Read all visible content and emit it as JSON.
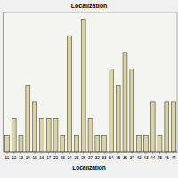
{
  "chart_data": {
    "type": "bar",
    "title": "Localization",
    "x_label": "Localization",
    "categories": [
      "11",
      "12",
      "13",
      "14",
      "15",
      "16",
      "17",
      "22",
      "23",
      "24",
      "25",
      "26",
      "27",
      "32",
      "33",
      "34",
      "35",
      "36",
      "37",
      "42",
      "43",
      "44",
      "45",
      "46",
      "47"
    ],
    "values": [
      1,
      2,
      1,
      4,
      3,
      2,
      2,
      2,
      1,
      7,
      1,
      8,
      2,
      1,
      1,
      5,
      4,
      6,
      5,
      1,
      1,
      3,
      1,
      3,
      3
    ],
    "color": "#d9d3a6",
    "ylim": [
      0,
      8.4
    ],
    "grid": false,
    "tick_labels": "x"
  }
}
